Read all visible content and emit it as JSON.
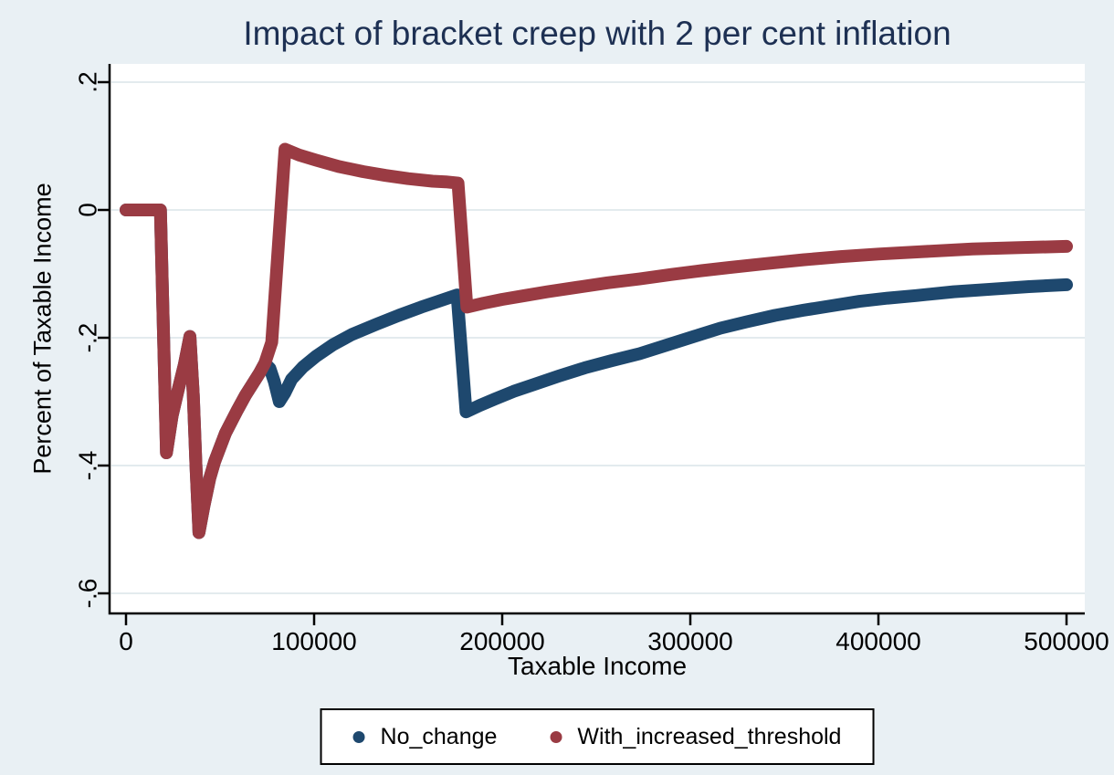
{
  "title": "Impact of bracket creep with 2 per cent inflation",
  "colors": {
    "background": "#e9f0f4",
    "plot_background": "#ffffff",
    "gridline": "#e3ebee",
    "axis": "#000000",
    "title_text": "#1d3053",
    "navy": "#1e486e",
    "maroon": "#9a3b43"
  },
  "chart_data": {
    "type": "line",
    "title": "Impact of bracket creep with 2 per cent inflation",
    "xlabel": "Taxable Income",
    "ylabel": "Percent of Taxable Income",
    "xlim": [
      0,
      500000
    ],
    "ylim": [
      -0.6,
      0.2
    ],
    "grid": "horizontal",
    "legend_position": "bottom",
    "x_ticks": [
      {
        "v": 0,
        "label": "0"
      },
      {
        "v": 100000,
        "label": "100000"
      },
      {
        "v": 200000,
        "label": "200000"
      },
      {
        "v": 300000,
        "label": "300000"
      },
      {
        "v": 400000,
        "label": "400000"
      },
      {
        "v": 500000,
        "label": "500000"
      }
    ],
    "y_ticks": [
      {
        "v": 0.2,
        "label": ".2"
      },
      {
        "v": 0,
        "label": "0"
      },
      {
        "v": -0.2,
        "label": "-.2"
      },
      {
        "v": -0.4,
        "label": "-.4"
      },
      {
        "v": -0.6,
        "label": "-.6"
      }
    ],
    "series": [
      {
        "name": "No_change",
        "color": "#1e486e",
        "points": [
          [
            0,
            0
          ],
          [
            18300,
            0
          ],
          [
            21500,
            -0.38
          ],
          [
            24500,
            -0.322
          ],
          [
            28000,
            -0.278
          ],
          [
            31000,
            -0.242
          ],
          [
            34000,
            -0.198
          ],
          [
            35800,
            -0.29
          ],
          [
            37200,
            -0.4
          ],
          [
            38800,
            -0.505
          ],
          [
            41500,
            -0.462
          ],
          [
            44500,
            -0.42
          ],
          [
            47100,
            -0.394
          ],
          [
            52900,
            -0.349
          ],
          [
            59200,
            -0.313
          ],
          [
            63500,
            -0.29
          ],
          [
            67400,
            -0.272
          ],
          [
            71000,
            -0.255
          ],
          [
            73800,
            -0.24
          ],
          [
            76500,
            -0.248
          ],
          [
            78800,
            -0.268
          ],
          [
            81500,
            -0.3
          ],
          [
            84500,
            -0.286
          ],
          [
            88000,
            -0.265
          ],
          [
            94000,
            -0.246
          ],
          [
            101000,
            -0.229
          ],
          [
            110000,
            -0.211
          ],
          [
            120000,
            -0.195
          ],
          [
            133000,
            -0.179
          ],
          [
            145000,
            -0.165
          ],
          [
            157000,
            -0.152
          ],
          [
            166000,
            -0.143
          ],
          [
            176000,
            -0.133
          ],
          [
            180800,
            -0.316
          ],
          [
            188000,
            -0.306
          ],
          [
            196000,
            -0.296
          ],
          [
            206000,
            -0.284
          ],
          [
            217000,
            -0.273
          ],
          [
            230000,
            -0.26
          ],
          [
            244000,
            -0.247
          ],
          [
            258000,
            -0.236
          ],
          [
            273000,
            -0.225
          ],
          [
            288000,
            -0.211
          ],
          [
            302000,
            -0.198
          ],
          [
            316000,
            -0.185
          ],
          [
            330000,
            -0.175
          ],
          [
            345000,
            -0.165
          ],
          [
            360000,
            -0.157
          ],
          [
            375000,
            -0.15
          ],
          [
            390000,
            -0.143
          ],
          [
            405000,
            -0.138
          ],
          [
            420000,
            -0.134
          ],
          [
            440000,
            -0.128
          ],
          [
            460000,
            -0.124
          ],
          [
            480000,
            -0.12
          ],
          [
            500000,
            -0.117
          ]
        ]
      },
      {
        "name": "With_increased_threshold",
        "color": "#9a3b43",
        "points": [
          [
            0,
            0
          ],
          [
            18300,
            0
          ],
          [
            21500,
            -0.38
          ],
          [
            24500,
            -0.322
          ],
          [
            28000,
            -0.278
          ],
          [
            31000,
            -0.242
          ],
          [
            34000,
            -0.198
          ],
          [
            35800,
            -0.29
          ],
          [
            37200,
            -0.4
          ],
          [
            38800,
            -0.505
          ],
          [
            41500,
            -0.462
          ],
          [
            44500,
            -0.42
          ],
          [
            47100,
            -0.394
          ],
          [
            52900,
            -0.349
          ],
          [
            59200,
            -0.313
          ],
          [
            63500,
            -0.29
          ],
          [
            67400,
            -0.272
          ],
          [
            71000,
            -0.255
          ],
          [
            73800,
            -0.24
          ],
          [
            77500,
            -0.207
          ],
          [
            84500,
            0.095
          ],
          [
            92000,
            0.086
          ],
          [
            101000,
            0.078
          ],
          [
            113000,
            0.068
          ],
          [
            126000,
            0.06
          ],
          [
            138000,
            0.054
          ],
          [
            150000,
            0.049
          ],
          [
            163000,
            0.045
          ],
          [
            170000,
            0.044
          ],
          [
            176500,
            0.042
          ],
          [
            181200,
            -0.152
          ],
          [
            190000,
            -0.146
          ],
          [
            200000,
            -0.14
          ],
          [
            212000,
            -0.134
          ],
          [
            224000,
            -0.128
          ],
          [
            240000,
            -0.121
          ],
          [
            256000,
            -0.114
          ],
          [
            273000,
            -0.108
          ],
          [
            290000,
            -0.101
          ],
          [
            306000,
            -0.095
          ],
          [
            321000,
            -0.09
          ],
          [
            340000,
            -0.084
          ],
          [
            360000,
            -0.078
          ],
          [
            380000,
            -0.073
          ],
          [
            400000,
            -0.069
          ],
          [
            425000,
            -0.065
          ],
          [
            450000,
            -0.061
          ],
          [
            475000,
            -0.059
          ],
          [
            500000,
            -0.057
          ]
        ]
      }
    ]
  }
}
